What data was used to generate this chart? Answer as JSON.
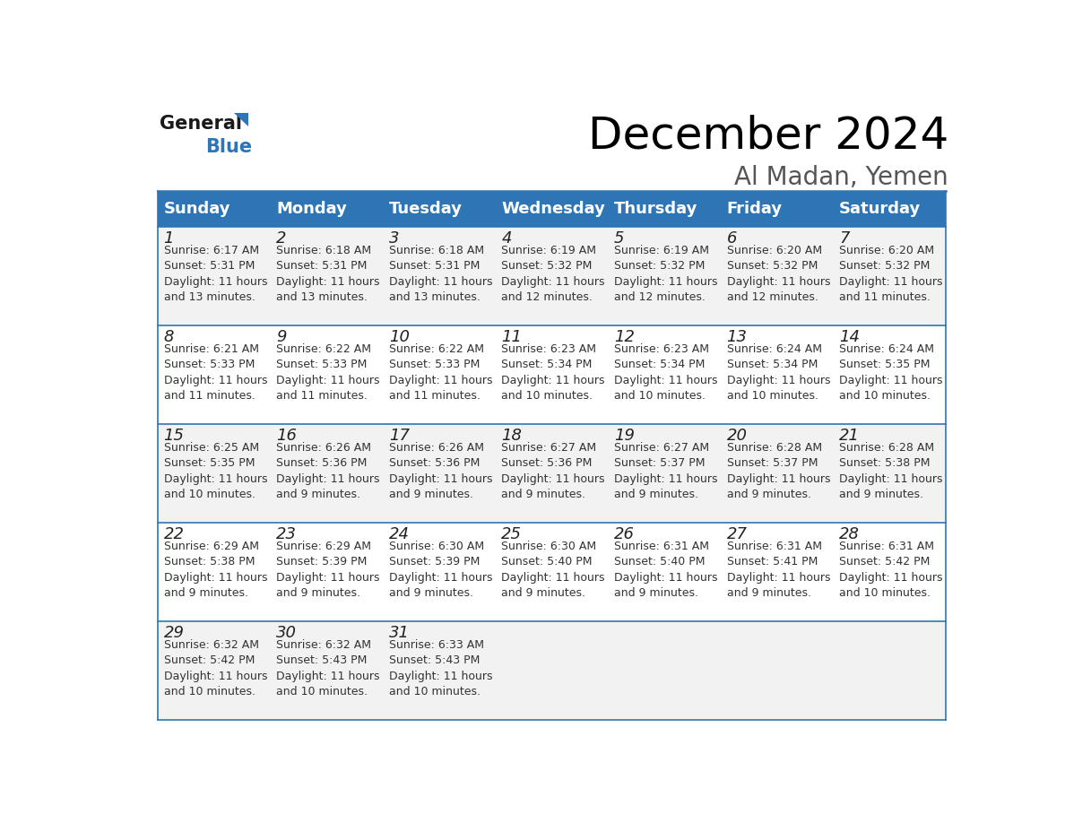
{
  "title": "December 2024",
  "subtitle": "Al Madan, Yemen",
  "header_color": "#2E75B6",
  "header_text_color": "#FFFFFF",
  "cell_bg_even": "#F2F2F2",
  "cell_bg_odd": "#FFFFFF",
  "border_color": "#2E75B6",
  "day_names": [
    "Sunday",
    "Monday",
    "Tuesday",
    "Wednesday",
    "Thursday",
    "Friday",
    "Saturday"
  ],
  "weeks": [
    [
      {
        "day": 1,
        "sunrise": "6:17 AM",
        "sunset": "5:31 PM",
        "daylight": "11 hours and 13 minutes."
      },
      {
        "day": 2,
        "sunrise": "6:18 AM",
        "sunset": "5:31 PM",
        "daylight": "11 hours and 13 minutes."
      },
      {
        "day": 3,
        "sunrise": "6:18 AM",
        "sunset": "5:31 PM",
        "daylight": "11 hours and 13 minutes."
      },
      {
        "day": 4,
        "sunrise": "6:19 AM",
        "sunset": "5:32 PM",
        "daylight": "11 hours and 12 minutes."
      },
      {
        "day": 5,
        "sunrise": "6:19 AM",
        "sunset": "5:32 PM",
        "daylight": "11 hours and 12 minutes."
      },
      {
        "day": 6,
        "sunrise": "6:20 AM",
        "sunset": "5:32 PM",
        "daylight": "11 hours and 12 minutes."
      },
      {
        "day": 7,
        "sunrise": "6:20 AM",
        "sunset": "5:32 PM",
        "daylight": "11 hours and 11 minutes."
      }
    ],
    [
      {
        "day": 8,
        "sunrise": "6:21 AM",
        "sunset": "5:33 PM",
        "daylight": "11 hours and 11 minutes."
      },
      {
        "day": 9,
        "sunrise": "6:22 AM",
        "sunset": "5:33 PM",
        "daylight": "11 hours and 11 minutes."
      },
      {
        "day": 10,
        "sunrise": "6:22 AM",
        "sunset": "5:33 PM",
        "daylight": "11 hours and 11 minutes."
      },
      {
        "day": 11,
        "sunrise": "6:23 AM",
        "sunset": "5:34 PM",
        "daylight": "11 hours and 10 minutes."
      },
      {
        "day": 12,
        "sunrise": "6:23 AM",
        "sunset": "5:34 PM",
        "daylight": "11 hours and 10 minutes."
      },
      {
        "day": 13,
        "sunrise": "6:24 AM",
        "sunset": "5:34 PM",
        "daylight": "11 hours and 10 minutes."
      },
      {
        "day": 14,
        "sunrise": "6:24 AM",
        "sunset": "5:35 PM",
        "daylight": "11 hours and 10 minutes."
      }
    ],
    [
      {
        "day": 15,
        "sunrise": "6:25 AM",
        "sunset": "5:35 PM",
        "daylight": "11 hours and 10 minutes."
      },
      {
        "day": 16,
        "sunrise": "6:26 AM",
        "sunset": "5:36 PM",
        "daylight": "11 hours and 9 minutes."
      },
      {
        "day": 17,
        "sunrise": "6:26 AM",
        "sunset": "5:36 PM",
        "daylight": "11 hours and 9 minutes."
      },
      {
        "day": 18,
        "sunrise": "6:27 AM",
        "sunset": "5:36 PM",
        "daylight": "11 hours and 9 minutes."
      },
      {
        "day": 19,
        "sunrise": "6:27 AM",
        "sunset": "5:37 PM",
        "daylight": "11 hours and 9 minutes."
      },
      {
        "day": 20,
        "sunrise": "6:28 AM",
        "sunset": "5:37 PM",
        "daylight": "11 hours and 9 minutes."
      },
      {
        "day": 21,
        "sunrise": "6:28 AM",
        "sunset": "5:38 PM",
        "daylight": "11 hours and 9 minutes."
      }
    ],
    [
      {
        "day": 22,
        "sunrise": "6:29 AM",
        "sunset": "5:38 PM",
        "daylight": "11 hours and 9 minutes."
      },
      {
        "day": 23,
        "sunrise": "6:29 AM",
        "sunset": "5:39 PM",
        "daylight": "11 hours and 9 minutes."
      },
      {
        "day": 24,
        "sunrise": "6:30 AM",
        "sunset": "5:39 PM",
        "daylight": "11 hours and 9 minutes."
      },
      {
        "day": 25,
        "sunrise": "6:30 AM",
        "sunset": "5:40 PM",
        "daylight": "11 hours and 9 minutes."
      },
      {
        "day": 26,
        "sunrise": "6:31 AM",
        "sunset": "5:40 PM",
        "daylight": "11 hours and 9 minutes."
      },
      {
        "day": 27,
        "sunrise": "6:31 AM",
        "sunset": "5:41 PM",
        "daylight": "11 hours and 9 minutes."
      },
      {
        "day": 28,
        "sunrise": "6:31 AM",
        "sunset": "5:42 PM",
        "daylight": "11 hours and 10 minutes."
      }
    ],
    [
      {
        "day": 29,
        "sunrise": "6:32 AM",
        "sunset": "5:42 PM",
        "daylight": "11 hours and 10 minutes."
      },
      {
        "day": 30,
        "sunrise": "6:32 AM",
        "sunset": "5:43 PM",
        "daylight": "11 hours and 10 minutes."
      },
      {
        "day": 31,
        "sunrise": "6:33 AM",
        "sunset": "5:43 PM",
        "daylight": "11 hours and 10 minutes."
      },
      null,
      null,
      null,
      null
    ]
  ],
  "logo_general_color": "#1a1a1a",
  "logo_blue_color": "#2E75B6",
  "title_fontsize": 36,
  "subtitle_fontsize": 20,
  "header_fontsize": 13,
  "day_num_fontsize": 13,
  "cell_text_fontsize": 9
}
